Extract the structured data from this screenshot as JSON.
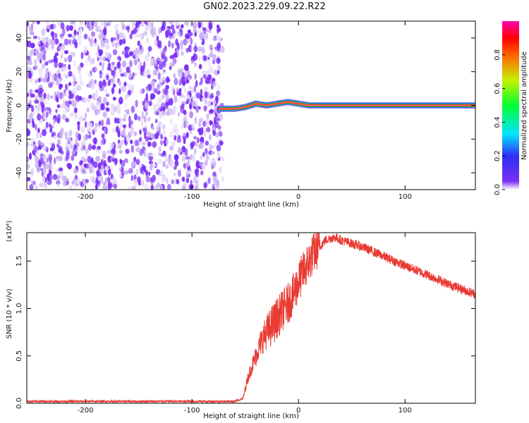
{
  "title": "GN02.2023.229.09.22.R22",
  "colorbar": {
    "label": "Normalized spectral amplitude",
    "ticks": [
      "0.0",
      "0.2",
      "0.4",
      "0.6",
      "0.8"
    ]
  },
  "colors": {
    "line": "#e83a32",
    "scatter_purple": "#7b2ff5",
    "scatter_light": "#c9b0f5"
  },
  "chart_data": [
    {
      "type": "heatmap",
      "xlabel": "Height of straight line (km)",
      "ylabel": "Frequency (Hz)",
      "xlim": [
        -255,
        166
      ],
      "ylim": [
        -50,
        50
      ],
      "x_ticks": [
        "-200",
        "-100",
        "0",
        "100"
      ],
      "y_ticks": [
        "-40",
        "-20",
        "0",
        "20",
        "40"
      ],
      "noise_region_x": [
        -255,
        -75
      ],
      "trace": [
        {
          "x": -75,
          "y": -2
        },
        {
          "x": -60,
          "y": -2
        },
        {
          "x": -50,
          "y": -1
        },
        {
          "x": -40,
          "y": 1
        },
        {
          "x": -30,
          "y": 0
        },
        {
          "x": -20,
          "y": 1
        },
        {
          "x": -10,
          "y": 2
        },
        {
          "x": 0,
          "y": 1
        },
        {
          "x": 10,
          "y": 0
        },
        {
          "x": 166,
          "y": 0
        }
      ],
      "colorbar_range": [
        0,
        1
      ]
    },
    {
      "type": "line",
      "xlabel": "Height of straight line (km)",
      "ylabel": "SNR (10 * v/v)",
      "y_multiplier": "(x10⁴)",
      "xlim": [
        -255,
        166
      ],
      "ylim": [
        0,
        1.8
      ],
      "x_ticks": [
        "-200",
        "-100",
        "0",
        "100"
      ],
      "y_ticks": [
        "0.0",
        "0.5",
        "1.0",
        "1.5"
      ],
      "x": [
        -255,
        -100,
        -60,
        -52,
        -48,
        -45,
        -40,
        -35,
        -30,
        -25,
        -20,
        -15,
        -10,
        -5,
        0,
        5,
        10,
        15,
        20,
        25,
        30,
        35,
        40,
        60,
        80,
        100,
        120,
        140,
        166
      ],
      "y": [
        0.02,
        0.02,
        0.02,
        0.05,
        0.25,
        0.35,
        0.5,
        0.65,
        0.75,
        0.82,
        0.9,
        0.98,
        1.05,
        1.15,
        1.28,
        1.4,
        1.5,
        1.6,
        1.65,
        1.72,
        1.74,
        1.75,
        1.72,
        1.65,
        1.55,
        1.45,
        1.36,
        1.26,
        1.15
      ]
    }
  ]
}
